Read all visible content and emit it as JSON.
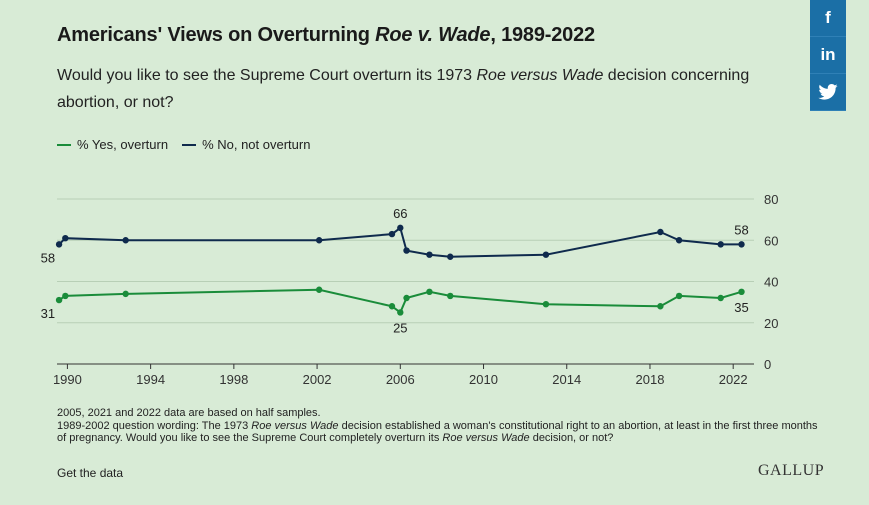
{
  "header": {
    "title_prefix": "Americans' Views on Overturning ",
    "title_italic": "Roe v. Wade",
    "title_suffix": ", 1989-2022",
    "subtitle_prefix": "Would you like to see the Supreme Court overturn its 1973 ",
    "subtitle_italic": "Roe versus Wade",
    "subtitle_suffix": " decision concerning abortion, or not?"
  },
  "social": {
    "facebook_label": "f",
    "linkedin_label": "in",
    "twitter_label": "🐦"
  },
  "colors": {
    "yes": "#1a8c3a",
    "no": "#0f2a4d",
    "background": "#d8ebd6",
    "grid": "#b8cfb6",
    "social": "#1b6fa6"
  },
  "chart_data": {
    "type": "line",
    "xlim": [
      1989.5,
      2023.0
    ],
    "ylim": [
      0,
      80
    ],
    "y_ticks": [
      0,
      20,
      40,
      60,
      80
    ],
    "x_ticks": [
      1990,
      1994,
      1998,
      2002,
      2006,
      2010,
      2014,
      2018,
      2022
    ],
    "grid": true,
    "legend_position": "top-left",
    "series": [
      {
        "name": "% Yes, overturn",
        "color": "#1a8c3a",
        "points": [
          [
            1989.6,
            31
          ],
          [
            1989.9,
            33
          ],
          [
            1992.8,
            34
          ],
          [
            2002.1,
            36
          ],
          [
            2005.6,
            28
          ],
          [
            2006.0,
            25
          ],
          [
            2006.3,
            32
          ],
          [
            2007.4,
            35
          ],
          [
            2008.4,
            33
          ],
          [
            2013.0,
            29
          ],
          [
            2018.5,
            28
          ],
          [
            2019.4,
            33
          ],
          [
            2021.4,
            32
          ],
          [
            2022.4,
            35
          ]
        ],
        "labels": [
          {
            "index": 0,
            "text": "31",
            "pos": "below-left"
          },
          {
            "index": 5,
            "text": "25",
            "pos": "below"
          },
          {
            "index": 13,
            "text": "35",
            "pos": "below"
          }
        ]
      },
      {
        "name": "% No, not overturn",
        "color": "#0f2a4d",
        "points": [
          [
            1989.6,
            58
          ],
          [
            1989.9,
            61
          ],
          [
            1992.8,
            60
          ],
          [
            2002.1,
            60
          ],
          [
            2005.6,
            63
          ],
          [
            2006.0,
            66
          ],
          [
            2006.3,
            55
          ],
          [
            2007.4,
            53
          ],
          [
            2008.4,
            52
          ],
          [
            2013.0,
            53
          ],
          [
            2018.5,
            64
          ],
          [
            2019.4,
            60
          ],
          [
            2021.4,
            58
          ],
          [
            2022.4,
            58
          ]
        ],
        "labels": [
          {
            "index": 0,
            "text": "58",
            "pos": "below-left"
          },
          {
            "index": 5,
            "text": "66",
            "pos": "above"
          },
          {
            "index": 13,
            "text": "58",
            "pos": "above"
          }
        ]
      }
    ]
  },
  "legend": {
    "yes_label": "% Yes, overturn",
    "no_label": "% No, not overturn"
  },
  "notes": {
    "line1": "2005, 2021 and 2022 data are based on half samples.",
    "line2_prefix": "1989-2002 question wording: The 1973 ",
    "line2_italic": "Roe versus Wade",
    "line2_mid": " decision established a woman's constitutional right to an abortion, at least in the first three months of pregnancy. Would you like to see the Supreme Court completely overturn its ",
    "line2_italic2": "Roe versus Wade",
    "line2_suffix": " decision, or not?"
  },
  "footer": {
    "get_data": "Get the data",
    "logo": "GALLUP"
  }
}
